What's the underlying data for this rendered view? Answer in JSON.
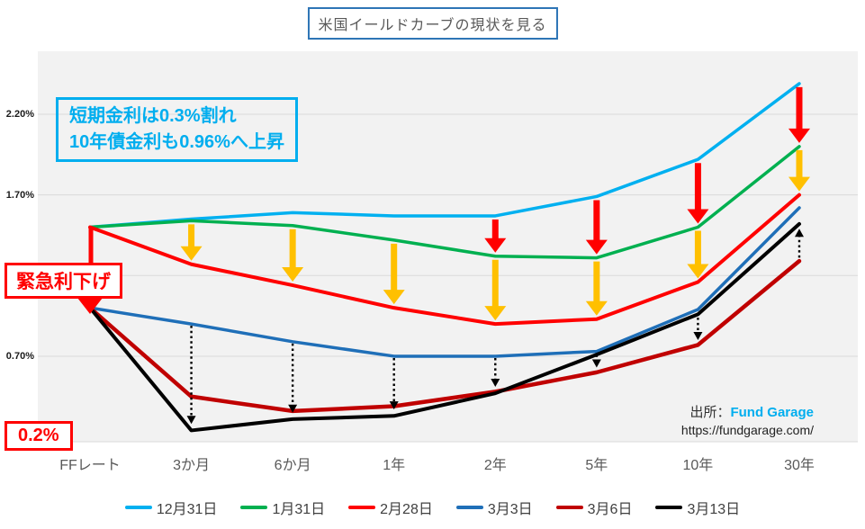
{
  "title": {
    "text": "米国イールドカーブの現状を見る"
  },
  "annotation": {
    "line1": "短期金利は0.3%割れ",
    "line2": "10年債金利も0.96%へ上昇"
  },
  "emergency_callout": {
    "label": "緊急利下げ"
  },
  "rate_callout": {
    "label": "0.2%"
  },
  "source": {
    "prefix": "出所：",
    "name": "Fund Garage",
    "url": "https://fundgarage.com/"
  },
  "colors": {
    "accent_blue": "#00AEEF",
    "alert_red": "#FF0000",
    "arrow_yellow": "#FFC000",
    "grid": "#D9D9D9",
    "plot_bg": "#F2F2F2",
    "axis_text": "#595959",
    "title_border": "#2E75B6"
  },
  "chart_data": {
    "type": "line",
    "title": "米国イールドカーブの現状を見る",
    "xlabel": "",
    "ylabel": "",
    "categories": [
      "FFレート",
      "3か月",
      "6か月",
      "1年",
      "2年",
      "5年",
      "10年",
      "30年"
    ],
    "series": [
      {
        "name": "12月31日",
        "color": "#00B0F0",
        "width": 3.5,
        "values": [
          1.5,
          1.55,
          1.59,
          1.57,
          1.57,
          1.69,
          1.92,
          2.39
        ]
      },
      {
        "name": "1月31日",
        "color": "#00B050",
        "width": 3.5,
        "values": [
          1.5,
          1.54,
          1.51,
          1.42,
          1.32,
          1.31,
          1.5,
          2.0
        ]
      },
      {
        "name": "2月28日",
        "color": "#FF0000",
        "width": 4,
        "values": [
          1.5,
          1.27,
          1.14,
          1.0,
          0.9,
          0.93,
          1.16,
          1.7
        ]
      },
      {
        "name": "3月3日",
        "color": "#1F6FB8",
        "width": 3.5,
        "values": [
          1.0,
          0.9,
          0.79,
          0.7,
          0.7,
          0.73,
          0.99,
          1.62
        ]
      },
      {
        "name": "3月6日",
        "color": "#C00000",
        "width": 4.5,
        "values": [
          1.0,
          0.45,
          0.36,
          0.39,
          0.48,
          0.6,
          0.77,
          1.29
        ]
      },
      {
        "name": "3月13日",
        "color": "#000000",
        "width": 4,
        "values": [
          1.0,
          0.24,
          0.31,
          0.33,
          0.47,
          0.71,
          0.96,
          1.52
        ]
      }
    ],
    "y_ticks": [
      {
        "label": "2.20%",
        "value": 2.2
      },
      {
        "label": "1.70%",
        "value": 1.7
      },
      {
        "label": "0.70%",
        "value": 0.7
      }
    ],
    "gridlines": [
      2.2,
      1.7,
      1.2,
      0.7
    ],
    "ylim": [
      0.1,
      2.55
    ],
    "grid": true,
    "legend_position": "bottom",
    "annotations": {
      "emergency_cut": {
        "category": "FFレート",
        "from": 1.5,
        "to": 1.0
      },
      "red_arrows": {
        "from_series": "12月31日",
        "to_series": "1月31日",
        "categories": [
          "2年",
          "5年",
          "10年",
          "30年"
        ]
      },
      "yellow_arrows": {
        "from_series": "1月31日",
        "to_series": "2月28日",
        "categories": [
          "3か月",
          "6か月",
          "1年",
          "2年",
          "5年",
          "10年",
          "30年"
        ]
      },
      "dotted_arrows": [
        {
          "category": "3か月",
          "from": 0.9,
          "to": 0.28
        },
        {
          "category": "6か月",
          "from": 0.79,
          "to": 0.35
        },
        {
          "category": "1年",
          "from": 0.7,
          "to": 0.37
        },
        {
          "category": "2年",
          "from": 0.7,
          "to": 0.51
        },
        {
          "category": "5年",
          "from": 0.72,
          "to": 0.63
        },
        {
          "category": "10年",
          "from": 0.95,
          "to": 0.8
        },
        {
          "category": "30年",
          "from": 1.3,
          "to": 1.49
        }
      ]
    }
  }
}
